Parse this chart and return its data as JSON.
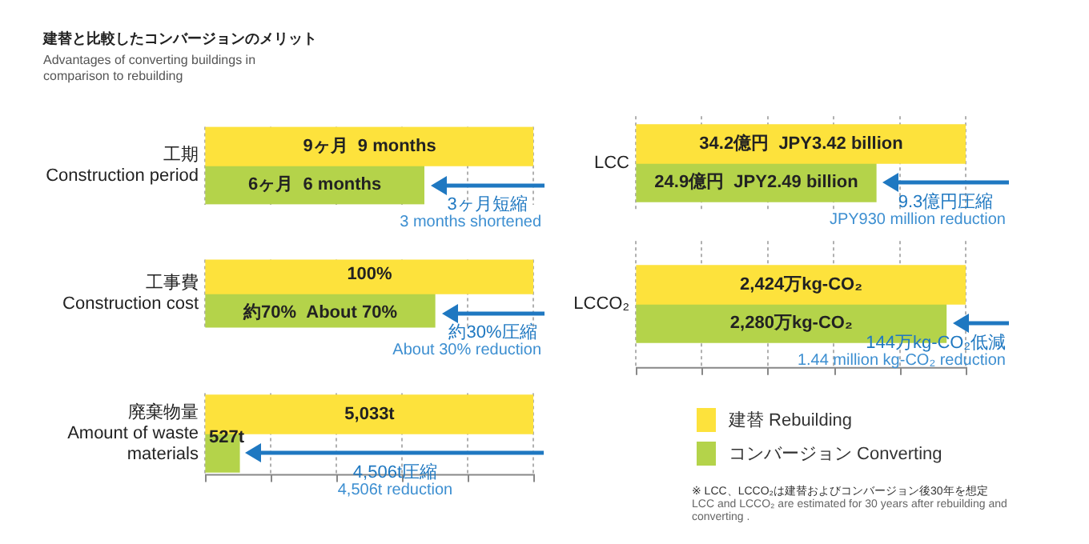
{
  "chart_data": [
    {
      "type": "bar",
      "orientation": "horizontal",
      "title": "建替と比較したコンバージョンのメリット",
      "subtitle": "Advantages of converting buildings in comparison to rebuilding",
      "categories": [
        "工期\nConstruction period"
      ],
      "grid": "x",
      "tick_labels": "y",
      "series": [
        {
          "color": "#fde23c",
          "values": [
            9
          ],
          "value_labels": [
            "9ヶ月  9 months"
          ]
        },
        {
          "color": "#b4d34a",
          "values": [
            6
          ],
          "value_labels": [
            "6ヶ月  6 months"
          ]
        }
      ],
      "annotations": [
        "3ヶ月短縮",
        "3 months shortened"
      ]
    },
    {
      "type": "bar",
      "orientation": "horizontal",
      "categories": [
        "工事費\nConstruction cost"
      ],
      "grid": "x",
      "tick_labels": "y",
      "series": [
        {
          "color": "#fde23c",
          "values": [
            100
          ],
          "value_labels": [
            "100%"
          ]
        },
        {
          "color": "#b4d34a",
          "values": [
            70
          ],
          "value_labels": [
            "約70%  About 70%"
          ]
        }
      ],
      "annotations": [
        "約30%圧縮",
        "About 30% reduction"
      ]
    },
    {
      "type": "bar",
      "orientation": "horizontal",
      "categories": [
        "廃棄物量\nAmount of waste materials"
      ],
      "grid": "x",
      "tick_labels": "y",
      "series": [
        {
          "color": "#fde23c",
          "values": [
            5033
          ],
          "value_labels": [
            "5,033t"
          ]
        },
        {
          "color": "#b4d34a",
          "values": [
            527
          ],
          "value_labels": [
            "527t"
          ]
        }
      ],
      "annotations": [
        "4,506t圧縮",
        "4,506t reduction"
      ]
    },
    {
      "type": "bar",
      "orientation": "horizontal",
      "categories": [
        "LCC"
      ],
      "grid": "x",
      "tick_labels": "y",
      "series": [
        {
          "color": "#fde23c",
          "values": [
            34.2
          ],
          "value_labels": [
            "34.2億円  JPY3.42 billion"
          ]
        },
        {
          "color": "#b4d34a",
          "values": [
            24.9
          ],
          "value_labels": [
            "24.9億円  JPY2.49 billion"
          ]
        }
      ],
      "annotations": [
        "9.3億円圧縮",
        "JPY930 million reduction"
      ]
    },
    {
      "type": "bar",
      "orientation": "horizontal",
      "categories": [
        "LCCO₂"
      ],
      "grid": "x",
      "tick_labels": "y",
      "legend": "bottom",
      "series": [
        {
          "name": "建替 Rebuilding",
          "color": "#fde23c",
          "values": [
            2424
          ],
          "value_labels": [
            "2,424万kg-CO₂"
          ]
        },
        {
          "name": "コンバージョン Converting",
          "color": "#b4d34a",
          "values": [
            2280
          ],
          "value_labels": [
            "2,280万kg-CO₂"
          ]
        }
      ],
      "annotations": [
        "144万kg-CO₂低減",
        "1.44 million kg-CO₂ reduction",
        "※ LCC、LCCO₂は建替およびコンバージョン後30年を想定",
        "LCC and LCCO₂ are estimated for 30 years after rebuilding and converting ."
      ]
    }
  ]
}
